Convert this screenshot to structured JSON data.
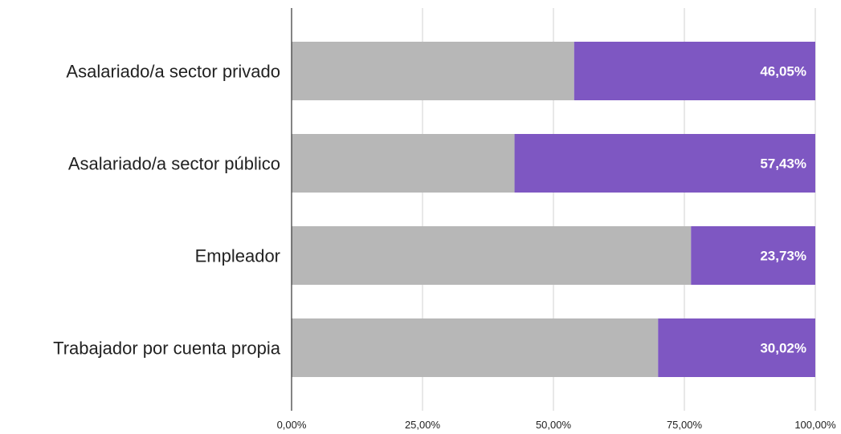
{
  "chart_data": {
    "type": "bar",
    "orientation": "horizontal",
    "stacked": true,
    "categories": [
      "Asalariado/a sector privado",
      "Asalariado/a sector público",
      "Empleador",
      "Trabajador por cuenta propia"
    ],
    "series": [
      {
        "values": [
          53.95,
          42.57,
          76.27,
          69.98
        ],
        "color": "#b7b7b7"
      },
      {
        "values": [
          46.05,
          57.43,
          23.73,
          30.02
        ],
        "color": "#7e57c2"
      }
    ],
    "data_labels": [
      "46,05%",
      "57,43%",
      "23,73%",
      "30,02%"
    ],
    "x_ticks": [
      "0,00%",
      "25,00%",
      "50,00%",
      "75,00%",
      "100,00%"
    ],
    "xlim": [
      0,
      100
    ],
    "grid": true,
    "legend": "none"
  }
}
